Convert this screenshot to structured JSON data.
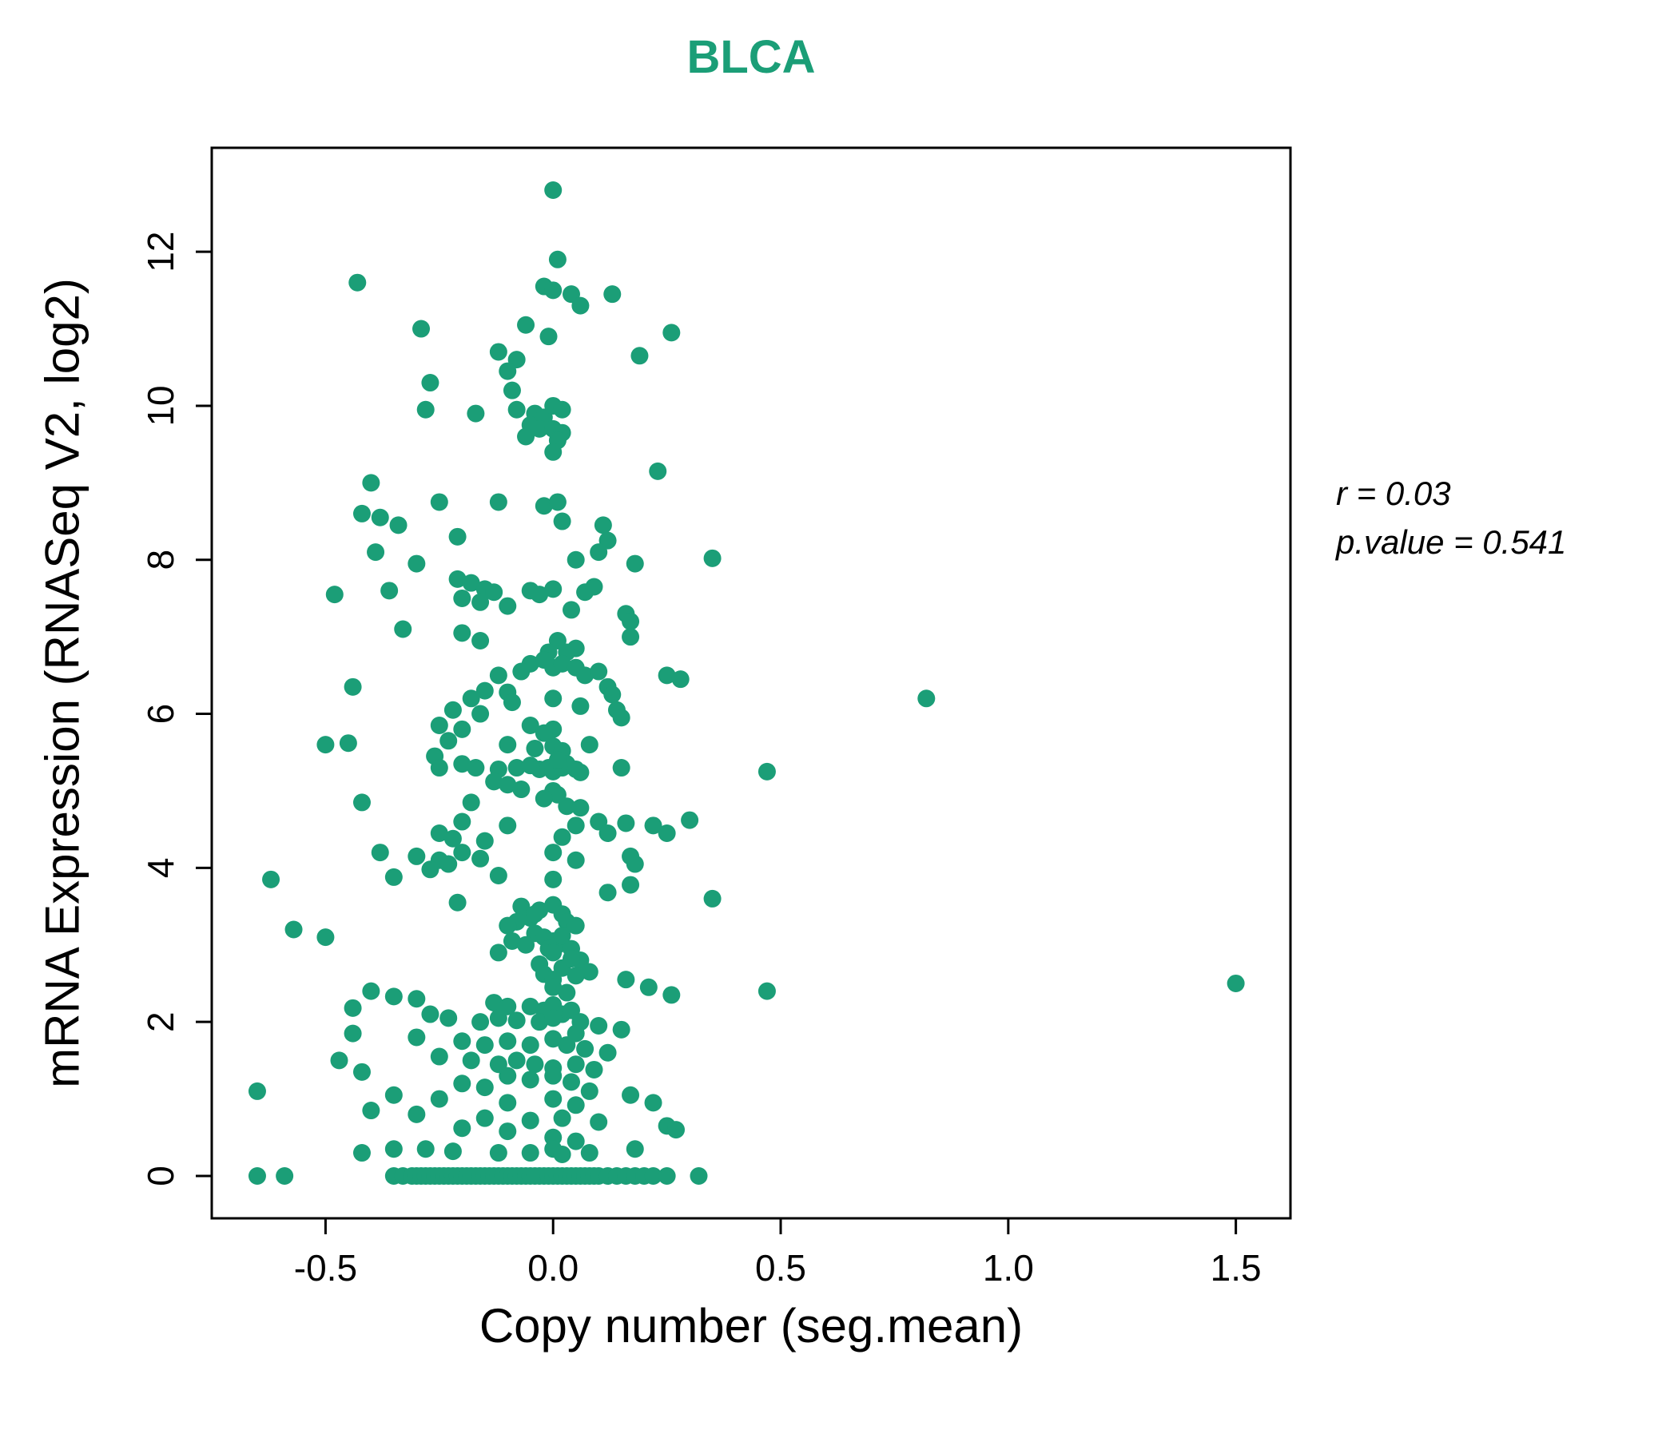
{
  "accent_color": "#1B9E77",
  "chart_data": {
    "type": "scatter",
    "title": "BLCA",
    "title_color": "#1B9E77",
    "xlabel": "Copy number (seg.mean)",
    "ylabel": "mRNA Expression (RNASeq V2, log2)",
    "xlim": [
      -0.75,
      1.62
    ],
    "ylim": [
      -0.55,
      13.35
    ],
    "x_ticks": [
      -0.5,
      0.0,
      0.5,
      1.0,
      1.5
    ],
    "x_tick_labels": [
      "-0.5",
      "0.0",
      "0.5",
      "1.0",
      "1.5"
    ],
    "y_ticks": [
      0,
      2,
      4,
      6,
      8,
      10,
      12
    ],
    "y_tick_labels": [
      "0",
      "2",
      "4",
      "6",
      "8",
      "10",
      "12"
    ],
    "grid": false,
    "point_color": "#1B9E77",
    "annotations": [
      "r = 0.03",
      "p.value = 0.541"
    ],
    "points": [
      [
        0.0,
        12.8
      ],
      [
        0.01,
        11.9
      ],
      [
        -0.43,
        11.6
      ],
      [
        -0.02,
        11.55
      ],
      [
        0.0,
        11.5
      ],
      [
        0.04,
        11.45
      ],
      [
        0.13,
        11.45
      ],
      [
        0.06,
        11.3
      ],
      [
        -0.29,
        11.0
      ],
      [
        -0.06,
        11.05
      ],
      [
        0.26,
        10.95
      ],
      [
        -0.01,
        10.9
      ],
      [
        -0.12,
        10.7
      ],
      [
        -0.08,
        10.6
      ],
      [
        0.19,
        10.65
      ],
      [
        -0.1,
        10.45
      ],
      [
        -0.27,
        10.3
      ],
      [
        -0.09,
        10.2
      ],
      [
        -0.28,
        9.95
      ],
      [
        -0.17,
        9.9
      ],
      [
        -0.08,
        9.95
      ],
      [
        -0.04,
        9.9
      ],
      [
        -0.02,
        9.85
      ],
      [
        0.0,
        10.0
      ],
      [
        0.02,
        9.95
      ],
      [
        -0.05,
        9.75
      ],
      [
        -0.03,
        9.7
      ],
      [
        0.0,
        9.7
      ],
      [
        0.02,
        9.65
      ],
      [
        -0.06,
        9.6
      ],
      [
        0.01,
        9.55
      ],
      [
        0.0,
        9.4
      ],
      [
        0.23,
        9.15
      ],
      [
        -0.4,
        9.0
      ],
      [
        -0.42,
        8.6
      ],
      [
        -0.25,
        8.75
      ],
      [
        -0.12,
        8.75
      ],
      [
        -0.02,
        8.7
      ],
      [
        0.01,
        8.75
      ],
      [
        -0.34,
        8.45
      ],
      [
        -0.21,
        8.3
      ],
      [
        0.02,
        8.5
      ],
      [
        0.11,
        8.45
      ],
      [
        0.12,
        8.25
      ],
      [
        -0.38,
        8.55
      ],
      [
        -0.39,
        8.1
      ],
      [
        0.05,
        8.0
      ],
      [
        0.18,
        7.95
      ],
      [
        0.35,
        8.02
      ],
      [
        -0.3,
        7.95
      ],
      [
        0.1,
        8.1
      ],
      [
        -0.48,
        7.55
      ],
      [
        -0.21,
        7.75
      ],
      [
        -0.18,
        7.7
      ],
      [
        -0.15,
        7.62
      ],
      [
        -0.13,
        7.58
      ],
      [
        -0.05,
        7.6
      ],
      [
        -0.03,
        7.55
      ],
      [
        0.0,
        7.62
      ],
      [
        0.07,
        7.58
      ],
      [
        0.09,
        7.65
      ],
      [
        -0.2,
        7.5
      ],
      [
        -0.16,
        7.45
      ],
      [
        -0.1,
        7.4
      ],
      [
        0.04,
        7.35
      ],
      [
        0.16,
        7.3
      ],
      [
        0.17,
        7.2
      ],
      [
        -0.36,
        7.6
      ],
      [
        -0.33,
        7.1
      ],
      [
        -0.2,
        7.05
      ],
      [
        -0.16,
        6.95
      ],
      [
        0.01,
        6.95
      ],
      [
        0.05,
        6.85
      ],
      [
        0.17,
        7.0
      ],
      [
        -0.01,
        6.8
      ],
      [
        0.03,
        6.8
      ],
      [
        -0.05,
        6.65
      ],
      [
        -0.02,
        6.7
      ],
      [
        0.0,
        6.6
      ],
      [
        0.02,
        6.65
      ],
      [
        0.05,
        6.6
      ],
      [
        -0.07,
        6.55
      ],
      [
        -0.12,
        6.5
      ],
      [
        0.07,
        6.5
      ],
      [
        0.1,
        6.55
      ],
      [
        0.25,
        6.5
      ],
      [
        -0.44,
        6.35
      ],
      [
        0.28,
        6.45
      ],
      [
        -0.15,
        6.3
      ],
      [
        -0.1,
        6.28
      ],
      [
        0.12,
        6.35
      ],
      [
        0.13,
        6.25
      ],
      [
        -0.18,
        6.2
      ],
      [
        -0.09,
        6.15
      ],
      [
        0.0,
        6.2
      ],
      [
        0.82,
        6.2
      ],
      [
        -0.22,
        6.05
      ],
      [
        -0.16,
        6.0
      ],
      [
        0.14,
        6.05
      ],
      [
        0.15,
        5.95
      ],
      [
        0.06,
        6.1
      ],
      [
        -0.5,
        5.6
      ],
      [
        -0.45,
        5.62
      ],
      [
        -0.25,
        5.85
      ],
      [
        -0.2,
        5.8
      ],
      [
        -0.05,
        5.85
      ],
      [
        0.0,
        5.8
      ],
      [
        -0.02,
        5.75
      ],
      [
        -0.23,
        5.65
      ],
      [
        -0.1,
        5.6
      ],
      [
        -0.04,
        5.55
      ],
      [
        0.0,
        5.58
      ],
      [
        0.02,
        5.52
      ],
      [
        0.08,
        5.6
      ],
      [
        -0.26,
        5.45
      ],
      [
        -0.25,
        5.3
      ],
      [
        -0.2,
        5.35
      ],
      [
        -0.17,
        5.3
      ],
      [
        -0.12,
        5.28
      ],
      [
        -0.08,
        5.3
      ],
      [
        -0.05,
        5.33
      ],
      [
        -0.03,
        5.28
      ],
      [
        -0.01,
        5.3
      ],
      [
        0.0,
        5.25
      ],
      [
        0.02,
        5.3
      ],
      [
        0.03,
        5.35
      ],
      [
        0.05,
        5.28
      ],
      [
        0.06,
        5.24
      ],
      [
        0.15,
        5.3
      ],
      [
        0.47,
        5.25
      ],
      [
        0.01,
        5.4
      ],
      [
        -0.13,
        5.12
      ],
      [
        -0.1,
        5.08
      ],
      [
        -0.07,
        5.02
      ],
      [
        0.0,
        5.0
      ],
      [
        0.01,
        4.95
      ],
      [
        -0.02,
        4.9
      ],
      [
        -0.42,
        4.85
      ],
      [
        -0.18,
        4.85
      ],
      [
        0.03,
        4.8
      ],
      [
        0.06,
        4.78
      ],
      [
        -0.2,
        4.6
      ],
      [
        -0.1,
        4.55
      ],
      [
        0.05,
        4.55
      ],
      [
        0.1,
        4.6
      ],
      [
        0.16,
        4.58
      ],
      [
        0.22,
        4.55
      ],
      [
        -0.25,
        4.45
      ],
      [
        -0.22,
        4.38
      ],
      [
        -0.15,
        4.35
      ],
      [
        0.02,
        4.4
      ],
      [
        0.12,
        4.45
      ],
      [
        0.25,
        4.45
      ],
      [
        0.3,
        4.62
      ],
      [
        -0.38,
        4.2
      ],
      [
        -0.3,
        4.15
      ],
      [
        -0.25,
        4.1
      ],
      [
        -0.23,
        4.05
      ],
      [
        -0.2,
        4.2
      ],
      [
        -0.16,
        4.12
      ],
      [
        0.0,
        4.2
      ],
      [
        0.05,
        4.1
      ],
      [
        0.17,
        4.15
      ],
      [
        0.18,
        4.05
      ],
      [
        -0.27,
        3.98
      ],
      [
        -0.62,
        3.85
      ],
      [
        -0.35,
        3.88
      ],
      [
        -0.12,
        3.9
      ],
      [
        0.0,
        3.85
      ],
      [
        0.17,
        3.78
      ],
      [
        0.35,
        3.6
      ],
      [
        -0.21,
        3.55
      ],
      [
        -0.07,
        3.5
      ],
      [
        -0.03,
        3.45
      ],
      [
        0.0,
        3.52
      ],
      [
        0.12,
        3.68
      ],
      [
        0.02,
        3.4
      ],
      [
        -0.05,
        3.35
      ],
      [
        -0.08,
        3.3
      ],
      [
        -0.1,
        3.25
      ],
      [
        0.03,
        3.3
      ],
      [
        0.05,
        3.25
      ],
      [
        -0.57,
        3.2
      ],
      [
        -0.04,
        3.4
      ],
      [
        -0.5,
        3.1
      ],
      [
        -0.04,
        3.15
      ],
      [
        -0.02,
        3.1
      ],
      [
        0.0,
        3.05
      ],
      [
        -0.09,
        3.05
      ],
      [
        -0.06,
        3.0
      ],
      [
        -0.01,
        2.95
      ],
      [
        0.01,
        3.0
      ],
      [
        0.04,
        2.95
      ],
      [
        -0.12,
        2.9
      ],
      [
        0.0,
        2.9
      ],
      [
        0.02,
        3.12
      ],
      [
        0.06,
        2.8
      ],
      [
        -0.03,
        2.75
      ],
      [
        0.02,
        2.7
      ],
      [
        0.08,
        2.65
      ],
      [
        0.05,
        2.6
      ],
      [
        0.16,
        2.55
      ],
      [
        1.5,
        2.5
      ],
      [
        -0.02,
        2.62
      ],
      [
        0.0,
        2.55
      ],
      [
        0.04,
        2.82
      ],
      [
        0.21,
        2.45
      ],
      [
        0.47,
        2.4
      ],
      [
        0.26,
        2.35
      ],
      [
        -0.4,
        2.4
      ],
      [
        -0.35,
        2.33
      ],
      [
        -0.3,
        2.3
      ],
      [
        0.0,
        2.45
      ],
      [
        0.03,
        2.38
      ],
      [
        -0.13,
        2.25
      ],
      [
        -0.1,
        2.2
      ],
      [
        -0.05,
        2.2
      ],
      [
        -0.02,
        2.15
      ],
      [
        0.0,
        2.22
      ],
      [
        0.02,
        2.1
      ],
      [
        0.04,
        2.15
      ],
      [
        -0.27,
        2.1
      ],
      [
        -0.23,
        2.05
      ],
      [
        -0.16,
        2.0
      ],
      [
        -0.12,
        2.05
      ],
      [
        -0.08,
        2.02
      ],
      [
        -0.03,
        2.0
      ],
      [
        0.0,
        2.05
      ],
      [
        0.06,
        2.0
      ],
      [
        0.1,
        1.95
      ],
      [
        -0.44,
        2.18
      ],
      [
        0.15,
        1.9
      ],
      [
        -0.3,
        1.8
      ],
      [
        -0.2,
        1.75
      ],
      [
        -0.15,
        1.7
      ],
      [
        -0.1,
        1.75
      ],
      [
        -0.05,
        1.7
      ],
      [
        0.0,
        1.78
      ],
      [
        0.03,
        1.7
      ],
      [
        0.07,
        1.65
      ],
      [
        0.12,
        1.6
      ],
      [
        -0.44,
        1.85
      ],
      [
        0.05,
        1.85
      ],
      [
        -0.47,
        1.5
      ],
      [
        -0.25,
        1.55
      ],
      [
        -0.18,
        1.5
      ],
      [
        -0.12,
        1.45
      ],
      [
        -0.08,
        1.5
      ],
      [
        -0.04,
        1.45
      ],
      [
        0.0,
        1.4
      ],
      [
        0.05,
        1.45
      ],
      [
        -0.42,
        1.35
      ],
      [
        0.09,
        1.38
      ],
      [
        -0.1,
        1.3
      ],
      [
        -0.05,
        1.25
      ],
      [
        0.0,
        1.3
      ],
      [
        0.04,
        1.22
      ],
      [
        -0.2,
        1.2
      ],
      [
        -0.15,
        1.15
      ],
      [
        0.08,
        1.1
      ],
      [
        -0.65,
        1.1
      ],
      [
        0.17,
        1.05
      ],
      [
        -0.35,
        1.05
      ],
      [
        -0.25,
        1.0
      ],
      [
        -0.1,
        0.95
      ],
      [
        0.0,
        1.0
      ],
      [
        0.22,
        0.95
      ],
      [
        0.05,
        0.92
      ],
      [
        -0.4,
        0.85
      ],
      [
        -0.3,
        0.8
      ],
      [
        -0.15,
        0.75
      ],
      [
        -0.05,
        0.72
      ],
      [
        0.02,
        0.75
      ],
      [
        0.1,
        0.7
      ],
      [
        0.25,
        0.65
      ],
      [
        -0.2,
        0.62
      ],
      [
        0.27,
        0.6
      ],
      [
        -0.1,
        0.58
      ],
      [
        0.0,
        0.5
      ],
      [
        0.05,
        0.45
      ],
      [
        -0.35,
        0.35
      ],
      [
        -0.22,
        0.32
      ],
      [
        -0.12,
        0.3
      ],
      [
        -0.05,
        0.3
      ],
      [
        0.0,
        0.35
      ],
      [
        0.08,
        0.3
      ],
      [
        0.18,
        0.35
      ],
      [
        -0.28,
        0.35
      ],
      [
        0.02,
        0.28
      ],
      [
        -0.42,
        0.3
      ],
      [
        -0.65,
        0.0
      ],
      [
        -0.59,
        0.0
      ],
      [
        -0.35,
        0.0
      ],
      [
        -0.33,
        0.0
      ],
      [
        -0.31,
        0.0
      ],
      [
        -0.3,
        0.0
      ],
      [
        -0.29,
        0.0
      ],
      [
        -0.28,
        0.0
      ],
      [
        -0.27,
        0.0
      ],
      [
        -0.26,
        0.0
      ],
      [
        -0.25,
        0.0
      ],
      [
        -0.24,
        0.0
      ],
      [
        -0.23,
        0.0
      ],
      [
        -0.22,
        0.0
      ],
      [
        -0.21,
        0.0
      ],
      [
        -0.2,
        0.0
      ],
      [
        -0.19,
        0.0
      ],
      [
        -0.18,
        0.0
      ],
      [
        -0.17,
        0.0
      ],
      [
        -0.16,
        0.0
      ],
      [
        -0.15,
        0.0
      ],
      [
        -0.14,
        0.0
      ],
      [
        -0.13,
        0.0
      ],
      [
        -0.12,
        0.0
      ],
      [
        -0.11,
        0.0
      ],
      [
        -0.1,
        0.0
      ],
      [
        -0.09,
        0.0
      ],
      [
        -0.08,
        0.0
      ],
      [
        -0.07,
        0.0
      ],
      [
        -0.06,
        0.0
      ],
      [
        -0.05,
        0.0
      ],
      [
        -0.04,
        0.0
      ],
      [
        -0.03,
        0.0
      ],
      [
        -0.02,
        0.0
      ],
      [
        -0.01,
        0.0
      ],
      [
        0.0,
        0.0
      ],
      [
        0.01,
        0.0
      ],
      [
        0.02,
        0.0
      ],
      [
        0.03,
        0.0
      ],
      [
        0.04,
        0.0
      ],
      [
        0.05,
        0.0
      ],
      [
        0.06,
        0.0
      ],
      [
        0.07,
        0.0
      ],
      [
        0.08,
        0.0
      ],
      [
        0.09,
        0.0
      ],
      [
        0.1,
        0.0
      ],
      [
        0.12,
        0.0
      ],
      [
        0.14,
        0.0
      ],
      [
        0.16,
        0.0
      ],
      [
        0.18,
        0.0
      ],
      [
        0.2,
        0.0
      ],
      [
        0.22,
        0.0
      ],
      [
        0.25,
        0.0
      ],
      [
        0.32,
        0.0
      ]
    ]
  }
}
